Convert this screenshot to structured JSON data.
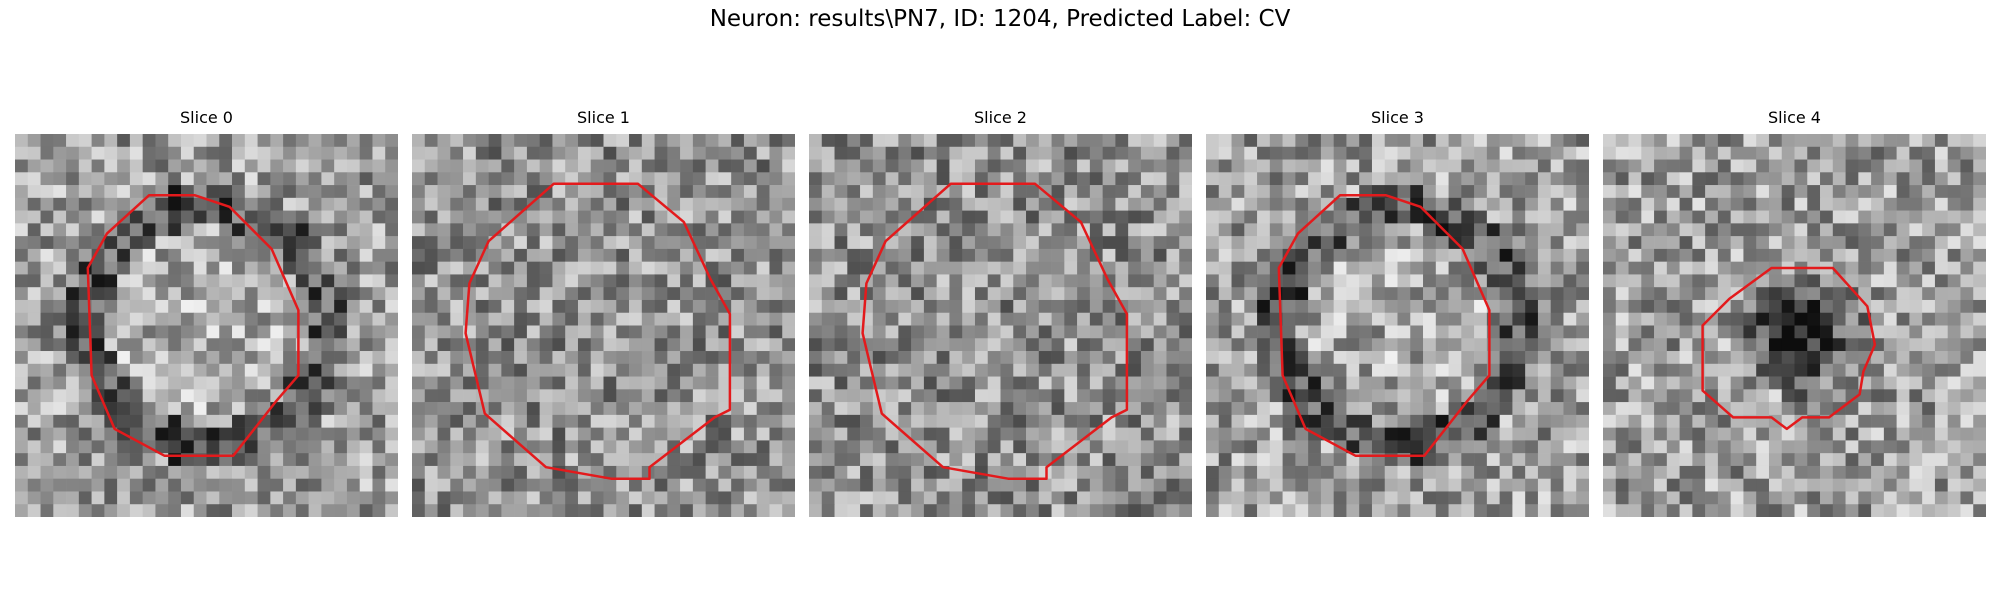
{
  "figure": {
    "title": "Neuron: results\\PN7, ID: 1204, Predicted Label: CV"
  },
  "slices": [
    {
      "title": "Slice 0",
      "pattern": "ring-dark",
      "contour": "large-octagon"
    },
    {
      "title": "Slice 1",
      "pattern": "noise",
      "contour": "largest-octagon"
    },
    {
      "title": "Slice 2",
      "pattern": "noise",
      "contour": "largest-octagon"
    },
    {
      "title": "Slice 3",
      "pattern": "ring-dark",
      "contour": "large-octagon"
    },
    {
      "title": "Slice 4",
      "pattern": "blob-dark",
      "contour": "small-octagon"
    }
  ],
  "colors": {
    "contour": "#e31a1c",
    "background": "#ffffff"
  }
}
